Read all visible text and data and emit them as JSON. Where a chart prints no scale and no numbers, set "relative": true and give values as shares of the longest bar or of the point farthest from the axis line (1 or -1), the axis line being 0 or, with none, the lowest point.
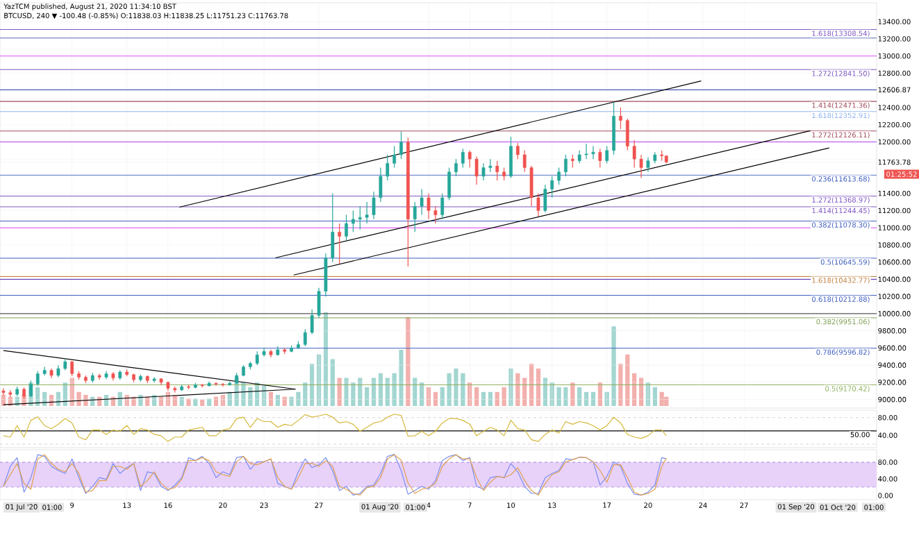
{
  "chart_data": [
    {
      "type": "candlestick",
      "title": "YazTCM published, August 21, 2020 11:34:10 BST",
      "subtitle": "BTCUSD, 240 ▼ -100.48 (-0.85%) O:11838.03 H:11838.25 L:11751.23 C:11763.78",
      "x": [
        "2020-07-04T00:00",
        "2020-07-04T12:00",
        "2020-07-05T00:00",
        "2020-07-05T12:00",
        "2020-07-06T00:00",
        "2020-07-06T12:00",
        "2020-07-07T00:00",
        "2020-07-07T12:00",
        "2020-07-08T00:00",
        "2020-07-08T12:00",
        "2020-07-09T00:00",
        "2020-07-09T12:00",
        "2020-07-10T00:00",
        "2020-07-10T12:00",
        "2020-07-11T00:00",
        "2020-07-11T12:00",
        "2020-07-12T00:00",
        "2020-07-12T12:00",
        "2020-07-13T00:00",
        "2020-07-13T12:00",
        "2020-07-14T00:00",
        "2020-07-14T12:00",
        "2020-07-15T00:00",
        "2020-07-15T12:00",
        "2020-07-16T00:00",
        "2020-07-16T12:00",
        "2020-07-17T00:00",
        "2020-07-17T12:00",
        "2020-07-18T00:00",
        "2020-07-18T12:00",
        "2020-07-19T00:00",
        "2020-07-19T12:00",
        "2020-07-20T00:00",
        "2020-07-20T12:00",
        "2020-07-21T00:00",
        "2020-07-21T12:00",
        "2020-07-22T00:00",
        "2020-07-22T12:00",
        "2020-07-23T00:00",
        "2020-07-23T12:00",
        "2020-07-24T00:00",
        "2020-07-24T12:00",
        "2020-07-25T00:00",
        "2020-07-25T12:00",
        "2020-07-26T00:00",
        "2020-07-26T12:00",
        "2020-07-27T00:00",
        "2020-07-27T12:00",
        "2020-07-28T00:00",
        "2020-07-28T12:00",
        "2020-07-29T00:00",
        "2020-07-29T12:00",
        "2020-07-30T00:00",
        "2020-07-30T12:00",
        "2020-07-31T00:00",
        "2020-07-31T12:00",
        "2020-08-01T00:00",
        "2020-08-01T12:00",
        "2020-08-02T00:00",
        "2020-08-02T12:00",
        "2020-08-03T00:00",
        "2020-08-03T12:00",
        "2020-08-04T00:00",
        "2020-08-04T12:00",
        "2020-08-05T00:00",
        "2020-08-05T12:00",
        "2020-08-06T00:00",
        "2020-08-06T12:00",
        "2020-08-07T00:00",
        "2020-08-07T12:00",
        "2020-08-08T00:00",
        "2020-08-08T12:00",
        "2020-08-09T00:00",
        "2020-08-09T12:00",
        "2020-08-10T00:00",
        "2020-08-10T12:00",
        "2020-08-11T00:00",
        "2020-08-11T12:00",
        "2020-08-12T00:00",
        "2020-08-12T12:00",
        "2020-08-13T00:00",
        "2020-08-13T12:00",
        "2020-08-14T00:00",
        "2020-08-14T12:00",
        "2020-08-15T00:00",
        "2020-08-15T12:00",
        "2020-08-16T00:00",
        "2020-08-16T12:00",
        "2020-08-17T00:00",
        "2020-08-17T12:00",
        "2020-08-18T00:00",
        "2020-08-18T12:00",
        "2020-08-19T00:00",
        "2020-08-19T12:00",
        "2020-08-20T00:00",
        "2020-08-20T12:00",
        "2020-08-21T00:00",
        "2020-08-21T08:00"
      ],
      "ohlc": [
        [
          9100,
          9130,
          9050,
          9080
        ],
        [
          9080,
          9110,
          9030,
          9060
        ],
        [
          9060,
          9150,
          9040,
          9120
        ],
        [
          9120,
          9140,
          9010,
          9040
        ],
        [
          9040,
          9220,
          9030,
          9180
        ],
        [
          9180,
          9330,
          9160,
          9300
        ],
        [
          9300,
          9380,
          9280,
          9340
        ],
        [
          9340,
          9360,
          9250,
          9280
        ],
        [
          9280,
          9400,
          9260,
          9360
        ],
        [
          9360,
          9470,
          9340,
          9440
        ],
        [
          9440,
          9450,
          9270,
          9300
        ],
        [
          9300,
          9330,
          9230,
          9260
        ],
        [
          9260,
          9280,
          9190,
          9220
        ],
        [
          9220,
          9310,
          9200,
          9280
        ],
        [
          9280,
          9300,
          9230,
          9260
        ],
        [
          9260,
          9330,
          9240,
          9300
        ],
        [
          9300,
          9320,
          9220,
          9250
        ],
        [
          9250,
          9340,
          9230,
          9320
        ],
        [
          9320,
          9350,
          9270,
          9290
        ],
        [
          9290,
          9300,
          9200,
          9230
        ],
        [
          9230,
          9290,
          9210,
          9270
        ],
        [
          9270,
          9280,
          9190,
          9220
        ],
        [
          9220,
          9260,
          9200,
          9240
        ],
        [
          9240,
          9250,
          9170,
          9200
        ],
        [
          9200,
          9210,
          9100,
          9130
        ],
        [
          9130,
          9150,
          9080,
          9110
        ],
        [
          9110,
          9170,
          9100,
          9150
        ],
        [
          9150,
          9170,
          9120,
          9140
        ],
        [
          9140,
          9190,
          9130,
          9170
        ],
        [
          9170,
          9180,
          9140,
          9160
        ],
        [
          9160,
          9210,
          9150,
          9190
        ],
        [
          9190,
          9200,
          9160,
          9180
        ],
        [
          9180,
          9190,
          9150,
          9170
        ],
        [
          9170,
          9210,
          9160,
          9190
        ],
        [
          9190,
          9310,
          9180,
          9280
        ],
        [
          9280,
          9400,
          9270,
          9380
        ],
        [
          9380,
          9440,
          9350,
          9420
        ],
        [
          9420,
          9560,
          9400,
          9520
        ],
        [
          9520,
          9600,
          9500,
          9560
        ],
        [
          9560,
          9580,
          9490,
          9520
        ],
        [
          9520,
          9620,
          9510,
          9580
        ],
        [
          9580,
          9600,
          9530,
          9560
        ],
        [
          9560,
          9630,
          9550,
          9600
        ],
        [
          9600,
          9680,
          9590,
          9640
        ],
        [
          9640,
          9820,
          9620,
          9780
        ],
        [
          9780,
          10050,
          9760,
          9980
        ],
        [
          9980,
          10300,
          9950,
          10260
        ],
        [
          10260,
          10700,
          10200,
          10650
        ],
        [
          10650,
          11400,
          10600,
          10950
        ],
        [
          10950,
          11050,
          10580,
          10900
        ],
        [
          10900,
          11150,
          10850,
          11050
        ],
        [
          11050,
          11200,
          10950,
          11100
        ],
        [
          11100,
          11250,
          10980,
          11120
        ],
        [
          11120,
          11300,
          11050,
          11150
        ],
        [
          11150,
          11420,
          11100,
          11350
        ],
        [
          11350,
          11700,
          11300,
          11600
        ],
        [
          11600,
          11850,
          11550,
          11750
        ],
        [
          11750,
          11950,
          11700,
          11850
        ],
        [
          11850,
          12120,
          11800,
          12000
        ],
        [
          12000,
          12050,
          10550,
          11100
        ],
        [
          11100,
          11300,
          10950,
          11250
        ],
        [
          11250,
          11450,
          11150,
          11350
        ],
        [
          11350,
          11400,
          11100,
          11200
        ],
        [
          11200,
          11250,
          11050,
          11150
        ],
        [
          11150,
          11400,
          11100,
          11350
        ],
        [
          11350,
          11700,
          11320,
          11650
        ],
        [
          11650,
          11800,
          11600,
          11750
        ],
        [
          11750,
          11920,
          11700,
          11880
        ],
        [
          11880,
          11900,
          11700,
          11800
        ],
        [
          11800,
          11830,
          11500,
          11600
        ],
        [
          11600,
          11750,
          11550,
          11700
        ],
        [
          11700,
          11800,
          11650,
          11720
        ],
        [
          11720,
          11780,
          11550,
          11650
        ],
        [
          11650,
          11700,
          11550,
          11600
        ],
        [
          11600,
          12060,
          11580,
          11950
        ],
        [
          11950,
          11990,
          11800,
          11850
        ],
        [
          11850,
          11900,
          11650,
          11700
        ],
        [
          11700,
          11720,
          11250,
          11350
        ],
        [
          11350,
          11400,
          11130,
          11200
        ],
        [
          11200,
          11500,
          11180,
          11450
        ],
        [
          11450,
          11600,
          11350,
          11550
        ],
        [
          11550,
          11700,
          11500,
          11650
        ],
        [
          11650,
          11850,
          11600,
          11800
        ],
        [
          11800,
          11850,
          11700,
          11780
        ],
        [
          11780,
          11900,
          11750,
          11850
        ],
        [
          11850,
          11980,
          11800,
          11860
        ],
        [
          11860,
          11950,
          11800,
          11880
        ],
        [
          11880,
          11920,
          11700,
          11780
        ],
        [
          11780,
          11950,
          11750,
          11900
        ],
        [
          11900,
          12465,
          11850,
          12300
        ],
        [
          12300,
          12400,
          12150,
          12250
        ],
        [
          12250,
          12270,
          11900,
          11950
        ],
        [
          11950,
          12020,
          11700,
          11800
        ],
        [
          11800,
          11850,
          11580,
          11700
        ],
        [
          11700,
          11820,
          11650,
          11780
        ],
        [
          11780,
          11880,
          11750,
          11850
        ],
        [
          11850,
          11900,
          11780,
          11838.03
        ],
        [
          11838.03,
          11838.25,
          11751.23,
          11763.78
        ]
      ],
      "series": [
        {
          "type": "line",
          "color": "#000000",
          "x": [
            "2020-07-16T20:00",
            "2020-08-23T21:00"
          ],
          "values": [
            11240,
            12710
          ]
        },
        {
          "type": "line",
          "color": "#000000",
          "x": [
            "2020-07-23T20:00",
            "2020-08-31T20:00"
          ],
          "values": [
            10650,
            12130
          ]
        },
        {
          "type": "line",
          "color": "#000000",
          "x": [
            "2020-07-25T04:00",
            "2020-09-02T05:00"
          ],
          "values": [
            10450,
            11930
          ]
        },
        {
          "type": "line",
          "color": "#000000",
          "x": [
            "2020-07-04T00:00",
            "2020-07-25T07:00"
          ],
          "values": [
            9570,
            9120
          ]
        },
        {
          "type": "line",
          "color": "#000000",
          "x": [
            "2020-07-04T00:00",
            "2020-07-25T07:00"
          ],
          "values": [
            8940,
            9120
          ]
        }
      ],
      "xlim": [
        "2020-07-03T18:00",
        "2020-09-05T16:00"
      ],
      "xticks": [
        {
          "value": "2020-07-09",
          "label": null
        },
        {
          "value": "2020-07-13",
          "label": null
        },
        {
          "value": "2020-07-16",
          "label": null
        },
        {
          "value": "2020-07-20",
          "label": null
        },
        {
          "value": "2020-07-23",
          "label": null
        },
        {
          "value": "2020-07-27",
          "label": null
        },
        {
          "value": "2020-08-04",
          "label": null
        },
        {
          "value": "2020-08-07",
          "label": null
        },
        {
          "value": "2020-08-10",
          "label": null
        },
        {
          "value": "2020-08-13",
          "label": null
        },
        {
          "value": "2020-08-17",
          "label": null
        },
        {
          "value": "2020-08-20",
          "label": null
        },
        {
          "value": "2020-08-24",
          "label": null
        },
        {
          "value": "2020-08-27",
          "label": null
        }
      ],
      "ylim": [
        8900,
        13620
      ],
      "yticks": [
        {
          "value": 9000,
          "label": "9000.00"
        },
        {
          "value": 9200,
          "label": "9200.00"
        },
        {
          "value": 9400,
          "label": "9400.00"
        },
        {
          "value": 9600,
          "label": "9600.00"
        },
        {
          "value": 9800,
          "label": "9800.00"
        },
        {
          "value": 10000,
          "label": "10000.00"
        },
        {
          "value": 10200,
          "label": "10200.00"
        },
        {
          "value": 10400,
          "label": "10400.00"
        },
        {
          "value": 10600,
          "label": "10600.00"
        },
        {
          "value": 10800,
          "label": "10800.00"
        },
        {
          "value": 11000,
          "label": "11000.00"
        },
        {
          "value": 11200,
          "label": "11200.00"
        },
        {
          "value": 11400,
          "label": "11400.00"
        },
        {
          "value": 11600,
          "label": null
        },
        {
          "value": 11763.78,
          "label": "11763.78"
        },
        {
          "value": 11800,
          "label": null
        },
        {
          "value": 12000,
          "label": "12000.00"
        },
        {
          "value": 12200,
          "label": "12200.00"
        },
        {
          "value": 12400,
          "label": "12400.00"
        },
        {
          "value": 12600,
          "label": null
        },
        {
          "value": 12606.87,
          "label": "12606.87"
        },
        {
          "value": 12800,
          "label": "12800.00"
        },
        {
          "value": 13000,
          "label": "13000.00"
        },
        {
          "value": 13200,
          "label": "13200.00"
        },
        {
          "value": 13400,
          "label": "13400.00"
        }
      ],
      "tick_labels": "y",
      "grid": true,
      "ref_lines": [
        {
          "axis": "y",
          "value": 13308.54,
          "label": "1.618(13308.54)",
          "color": "#7e57c2"
        },
        {
          "axis": "y",
          "value": 13210,
          "color": "#5c6bc0"
        },
        {
          "axis": "y",
          "value": 13000,
          "color": "#e040fb"
        },
        {
          "axis": "y",
          "value": 12841.5,
          "label": "1.272(12841.50)",
          "color": "#7e57c2"
        },
        {
          "axis": "y",
          "value": 12606.87,
          "color": "#3f51b5"
        },
        {
          "axis": "y",
          "value": 12471.36,
          "label": "1.414(12471.36)",
          "color": "#a14a5a"
        },
        {
          "axis": "y",
          "value": 12352.91,
          "label": "1.618(12352.91)",
          "color": "#90b4f0"
        },
        {
          "axis": "y",
          "value": 12126.11,
          "label": "1.272(12126.11)",
          "color": "#a14a5a"
        },
        {
          "axis": "y",
          "value": 12000,
          "color": "#b040f0"
        },
        {
          "axis": "y",
          "value": 11613.68,
          "label": "0.236(11613.68)",
          "color": "#3f5fc0"
        },
        {
          "axis": "y",
          "value": 11368.97,
          "label": "1.272(11368.97)",
          "color": "#7e57c2"
        },
        {
          "axis": "y",
          "value": 11244.45,
          "label": "1.414(11244.45)",
          "color": "#7e57c2"
        },
        {
          "axis": "y",
          "value": 11078.3,
          "label": "0.382(11078.30)",
          "color": "#3f5fc0"
        },
        {
          "axis": "y",
          "value": 11000,
          "color": "#e040fb"
        },
        {
          "axis": "y",
          "value": 10645.59,
          "label": "0.5(10645.59)",
          "color": "#3f5fc0"
        },
        {
          "axis": "y",
          "value": 10432.77,
          "label": "1.618(10432.77)",
          "color": "#c08040"
        },
        {
          "axis": "y",
          "value": 10400,
          "color": "#5e35b1"
        },
        {
          "axis": "y",
          "value": 10212.88,
          "label": "0.618(10212.88)",
          "color": "#3f5fc0"
        },
        {
          "axis": "y",
          "value": 10000,
          "color": "#555555"
        },
        {
          "axis": "y",
          "value": 9951.06,
          "label": "0.382(9951.06)",
          "color": "#7fa055"
        },
        {
          "axis": "y",
          "value": 9596.82,
          "label": "0.786(9596.82)",
          "color": "#3f5fc0"
        },
        {
          "axis": "y",
          "value": 9170.42,
          "label": "0.5(9170.42)",
          "color": "#8fb060"
        }
      ],
      "annotations": [
        "01:25:52"
      ]
    },
    {
      "type": "bar",
      "relative": true,
      "x": [
        "2020-07-04T00:00",
        "2020-07-04T12:00",
        "2020-07-05T00:00",
        "2020-07-05T12:00",
        "2020-07-06T00:00",
        "2020-07-06T12:00",
        "2020-07-07T00:00",
        "2020-07-07T12:00",
        "2020-07-08T00:00",
        "2020-07-08T12:00",
        "2020-07-09T00:00",
        "2020-07-09T12:00",
        "2020-07-10T00:00",
        "2020-07-10T12:00",
        "2020-07-11T00:00",
        "2020-07-11T12:00",
        "2020-07-12T00:00",
        "2020-07-12T12:00",
        "2020-07-13T00:00",
        "2020-07-13T12:00",
        "2020-07-14T00:00",
        "2020-07-14T12:00",
        "2020-07-15T00:00",
        "2020-07-15T12:00",
        "2020-07-16T00:00",
        "2020-07-16T12:00",
        "2020-07-17T00:00",
        "2020-07-17T12:00",
        "2020-07-18T00:00",
        "2020-07-18T12:00",
        "2020-07-19T00:00",
        "2020-07-19T12:00",
        "2020-07-20T00:00",
        "2020-07-20T12:00",
        "2020-07-21T00:00",
        "2020-07-21T12:00",
        "2020-07-22T00:00",
        "2020-07-22T12:00",
        "2020-07-23T00:00",
        "2020-07-23T12:00",
        "2020-07-24T00:00",
        "2020-07-24T12:00",
        "2020-07-25T00:00",
        "2020-07-25T12:00",
        "2020-07-26T00:00",
        "2020-07-26T12:00",
        "2020-07-27T00:00",
        "2020-07-27T12:00",
        "2020-07-28T00:00",
        "2020-07-28T12:00",
        "2020-07-29T00:00",
        "2020-07-29T12:00",
        "2020-07-30T00:00",
        "2020-07-30T12:00",
        "2020-07-31T00:00",
        "2020-07-31T12:00",
        "2020-08-01T00:00",
        "2020-08-01T12:00",
        "2020-08-02T00:00",
        "2020-08-02T12:00",
        "2020-08-03T00:00",
        "2020-08-03T12:00",
        "2020-08-04T00:00",
        "2020-08-04T12:00",
        "2020-08-05T00:00",
        "2020-08-05T12:00",
        "2020-08-06T00:00",
        "2020-08-06T12:00",
        "2020-08-07T00:00",
        "2020-08-07T12:00",
        "2020-08-08T00:00",
        "2020-08-08T12:00",
        "2020-08-09T00:00",
        "2020-08-09T12:00",
        "2020-08-10T00:00",
        "2020-08-10T12:00",
        "2020-08-11T00:00",
        "2020-08-11T12:00",
        "2020-08-12T00:00",
        "2020-08-12T12:00",
        "2020-08-13T00:00",
        "2020-08-13T12:00",
        "2020-08-14T00:00",
        "2020-08-14T12:00",
        "2020-08-15T00:00",
        "2020-08-15T12:00",
        "2020-08-16T00:00",
        "2020-08-16T12:00",
        "2020-08-17T00:00",
        "2020-08-17T12:00",
        "2020-08-18T00:00",
        "2020-08-18T12:00",
        "2020-08-19T00:00",
        "2020-08-19T12:00",
        "2020-08-20T00:00",
        "2020-08-20T12:00",
        "2020-08-21T00:00",
        "2020-08-21T08:00"
      ],
      "values": [
        0.12,
        0.1,
        0.1,
        0.12,
        0.25,
        0.2,
        0.15,
        0.12,
        0.15,
        0.25,
        0.3,
        0.15,
        0.12,
        0.1,
        0.1,
        0.12,
        0.1,
        0.15,
        0.12,
        0.1,
        0.12,
        0.1,
        0.12,
        0.1,
        0.15,
        0.12,
        0.1,
        0.08,
        0.08,
        0.07,
        0.08,
        0.1,
        0.12,
        0.15,
        0.3,
        0.25,
        0.2,
        0.25,
        0.22,
        0.15,
        0.12,
        0.1,
        0.1,
        0.15,
        0.25,
        0.45,
        0.55,
        1.0,
        0.5,
        0.3,
        0.3,
        0.25,
        0.3,
        0.2,
        0.3,
        0.35,
        0.3,
        0.35,
        0.6,
        0.95,
        0.3,
        0.25,
        0.2,
        0.15,
        0.2,
        0.35,
        0.4,
        0.35,
        0.25,
        0.2,
        0.15,
        0.15,
        0.15,
        0.2,
        0.4,
        0.35,
        0.3,
        0.45,
        0.4,
        0.3,
        0.25,
        0.2,
        0.2,
        0.25,
        0.2,
        0.15,
        0.15,
        0.25,
        0.15,
        0.85,
        0.45,
        0.55,
        0.35,
        0.3,
        0.25,
        0.2,
        0.15,
        0.1
      ],
      "colors": [
        "#f2b0ad",
        "#f2b0ad",
        "#a3d6d1",
        "#f2b0ad",
        "#a3d6d1",
        "#a3d6d1",
        "#a3d6d1",
        "#f2b0ad",
        "#a3d6d1",
        "#a3d6d1",
        "#f2b0ad",
        "#f2b0ad",
        "#f2b0ad",
        "#a3d6d1",
        "#f2b0ad",
        "#a3d6d1",
        "#f2b0ad",
        "#a3d6d1",
        "#f2b0ad",
        "#f2b0ad",
        "#a3d6d1",
        "#f2b0ad",
        "#a3d6d1",
        "#f2b0ad",
        "#f2b0ad",
        "#f2b0ad",
        "#a3d6d1",
        "#f2b0ad",
        "#a3d6d1",
        "#f2b0ad",
        "#a3d6d1",
        "#f2b0ad",
        "#f2b0ad",
        "#a3d6d1",
        "#a3d6d1",
        "#a3d6d1",
        "#a3d6d1",
        "#a3d6d1",
        "#a3d6d1",
        "#f2b0ad",
        "#a3d6d1",
        "#f2b0ad",
        "#a3d6d1",
        "#a3d6d1",
        "#a3d6d1",
        "#a3d6d1",
        "#a3d6d1",
        "#a3d6d1",
        "#a3d6d1",
        "#f2b0ad",
        "#a3d6d1",
        "#a3d6d1",
        "#a3d6d1",
        "#a3d6d1",
        "#a3d6d1",
        "#a3d6d1",
        "#a3d6d1",
        "#a3d6d1",
        "#a3d6d1",
        "#f2b0ad",
        "#a3d6d1",
        "#a3d6d1",
        "#f2b0ad",
        "#f2b0ad",
        "#a3d6d1",
        "#a3d6d1",
        "#a3d6d1",
        "#a3d6d1",
        "#f2b0ad",
        "#f2b0ad",
        "#a3d6d1",
        "#a3d6d1",
        "#f2b0ad",
        "#f2b0ad",
        "#a3d6d1",
        "#f2b0ad",
        "#f2b0ad",
        "#f2b0ad",
        "#f2b0ad",
        "#a3d6d1",
        "#a3d6d1",
        "#a3d6d1",
        "#a3d6d1",
        "#f2b0ad",
        "#a3d6d1",
        "#a3d6d1",
        "#a3d6d1",
        "#f2b0ad",
        "#a3d6d1",
        "#a3d6d1",
        "#f2b0ad",
        "#f2b0ad",
        "#f2b0ad",
        "#f2b0ad",
        "#a3d6d1",
        "#a3d6d1",
        "#f2b0ad",
        "#f2b0ad"
      ],
      "xlim": [
        "2020-07-03T18:00",
        "2020-09-05T16:00"
      ]
    },
    {
      "type": "line",
      "x": [
        "2020-07-04T00:00",
        "2020-07-04T12:00",
        "2020-07-05T00:00",
        "2020-07-05T12:00",
        "2020-07-06T00:00",
        "2020-07-06T12:00",
        "2020-07-07T00:00",
        "2020-07-07T12:00",
        "2020-07-08T00:00",
        "2020-07-08T12:00",
        "2020-07-09T00:00",
        "2020-07-09T12:00",
        "2020-07-10T00:00",
        "2020-07-10T12:00",
        "2020-07-11T00:00",
        "2020-07-11T12:00",
        "2020-07-12T00:00",
        "2020-07-12T12:00",
        "2020-07-13T00:00",
        "2020-07-13T12:00",
        "2020-07-14T00:00",
        "2020-07-14T12:00",
        "2020-07-15T00:00",
        "2020-07-15T12:00",
        "2020-07-16T00:00",
        "2020-07-16T12:00",
        "2020-07-17T00:00",
        "2020-07-17T12:00",
        "2020-07-18T00:00",
        "2020-07-18T12:00",
        "2020-07-19T00:00",
        "2020-07-19T12:00",
        "2020-07-20T00:00",
        "2020-07-20T12:00",
        "2020-07-21T00:00",
        "2020-07-21T12:00",
        "2020-07-22T00:00",
        "2020-07-22T12:00",
        "2020-07-23T00:00",
        "2020-07-23T12:00",
        "2020-07-24T00:00",
        "2020-07-24T12:00",
        "2020-07-25T00:00",
        "2020-07-25T12:00",
        "2020-07-26T00:00",
        "2020-07-26T12:00",
        "2020-07-27T00:00",
        "2020-07-27T12:00",
        "2020-07-28T00:00",
        "2020-07-28T12:00",
        "2020-07-29T00:00",
        "2020-07-29T12:00",
        "2020-07-30T00:00",
        "2020-07-30T12:00",
        "2020-07-31T00:00",
        "2020-07-31T12:00",
        "2020-08-01T00:00",
        "2020-08-01T12:00",
        "2020-08-02T00:00",
        "2020-08-02T12:00",
        "2020-08-03T00:00",
        "2020-08-03T12:00",
        "2020-08-04T00:00",
        "2020-08-04T12:00",
        "2020-08-05T00:00",
        "2020-08-05T12:00",
        "2020-08-06T00:00",
        "2020-08-06T12:00",
        "2020-08-07T00:00",
        "2020-08-07T12:00",
        "2020-08-08T00:00",
        "2020-08-08T12:00",
        "2020-08-09T00:00",
        "2020-08-09T12:00",
        "2020-08-10T00:00",
        "2020-08-10T12:00",
        "2020-08-11T00:00",
        "2020-08-11T12:00",
        "2020-08-12T00:00",
        "2020-08-12T12:00",
        "2020-08-13T00:00",
        "2020-08-13T12:00",
        "2020-08-14T00:00",
        "2020-08-14T12:00",
        "2020-08-15T00:00",
        "2020-08-15T12:00",
        "2020-08-16T00:00",
        "2020-08-16T12:00",
        "2020-08-17T00:00",
        "2020-08-17T12:00",
        "2020-08-18T00:00",
        "2020-08-18T12:00",
        "2020-08-19T00:00",
        "2020-08-19T12:00",
        "2020-08-20T00:00",
        "2020-08-20T12:00",
        "2020-08-21T00:00",
        "2020-08-21T08:00"
      ],
      "series": [
        {
          "color": "#d4b83a",
          "values": [
            39,
            36,
            62,
            36,
            74,
            82,
            62,
            55,
            65,
            78,
            68,
            36,
            30,
            52,
            52,
            42,
            52,
            49,
            62,
            42,
            55,
            52,
            42,
            39,
            26,
            36,
            36,
            52,
            55,
            58,
            39,
            39,
            52,
            55,
            78,
            81,
            58,
            78,
            71,
            71,
            58,
            65,
            62,
            74,
            87,
            81,
            84,
            88,
            81,
            68,
            71,
            65,
            49,
            58,
            68,
            71,
            81,
            88,
            85,
            38,
            39,
            49,
            39,
            49,
            68,
            78,
            78,
            74,
            65,
            39,
            49,
            58,
            52,
            39,
            74,
            55,
            52,
            30,
            26,
            42,
            52,
            45,
            71,
            65,
            71,
            68,
            62,
            52,
            62,
            81,
            68,
            42,
            36,
            33,
            39,
            52,
            52,
            39
          ]
        }
      ],
      "xlim": [
        "2020-07-03T18:00",
        "2020-09-05T16:00"
      ],
      "xticks": [
        {
          "value": "2020-07-09",
          "label": null
        },
        {
          "value": "2020-07-13",
          "label": null
        },
        {
          "value": "2020-07-16",
          "label": null
        },
        {
          "value": "2020-07-20",
          "label": null
        },
        {
          "value": "2020-07-23",
          "label": null
        },
        {
          "value": "2020-07-27",
          "label": null
        },
        {
          "value": "2020-08-04",
          "label": null
        },
        {
          "value": "2020-08-07",
          "label": null
        },
        {
          "value": "2020-08-10",
          "label": null
        },
        {
          "value": "2020-08-13",
          "label": null
        },
        {
          "value": "2020-08-17",
          "label": null
        },
        {
          "value": "2020-08-20",
          "label": null
        },
        {
          "value": "2020-08-24",
          "label": null
        },
        {
          "value": "2020-08-27",
          "label": null
        }
      ],
      "ylim": [
        12,
        97
      ],
      "yticks": [
        {
          "value": 40,
          "label": "40.00"
        },
        {
          "value": 80,
          "label": "80.00"
        }
      ],
      "tick_labels": "y",
      "grid": "x",
      "ref_lines": [
        {
          "axis": "y",
          "value": 80,
          "color": "#d9d0dc",
          "line_style": "dashed"
        },
        {
          "axis": "y",
          "value": 20,
          "color": "#d9d0dc",
          "line_style": "dashed"
        },
        {
          "axis": "y",
          "value": 50,
          "label": "50.00",
          "color": "#000000"
        }
      ]
    },
    {
      "type": "line",
      "x": [
        "2020-07-04T00:00",
        "2020-07-04T12:00",
        "2020-07-05T00:00",
        "2020-07-05T12:00",
        "2020-07-06T00:00",
        "2020-07-06T12:00",
        "2020-07-07T00:00",
        "2020-07-07T12:00",
        "2020-07-08T00:00",
        "2020-07-08T12:00",
        "2020-07-09T00:00",
        "2020-07-09T12:00",
        "2020-07-10T00:00",
        "2020-07-10T12:00",
        "2020-07-11T00:00",
        "2020-07-11T12:00",
        "2020-07-12T00:00",
        "2020-07-12T12:00",
        "2020-07-13T00:00",
        "2020-07-13T12:00",
        "2020-07-14T00:00",
        "2020-07-14T12:00",
        "2020-07-15T00:00",
        "2020-07-15T12:00",
        "2020-07-16T00:00",
        "2020-07-16T12:00",
        "2020-07-17T00:00",
        "2020-07-17T12:00",
        "2020-07-18T00:00",
        "2020-07-18T12:00",
        "2020-07-19T00:00",
        "2020-07-19T12:00",
        "2020-07-20T00:00",
        "2020-07-20T12:00",
        "2020-07-21T00:00",
        "2020-07-21T12:00",
        "2020-07-22T00:00",
        "2020-07-22T12:00",
        "2020-07-23T00:00",
        "2020-07-23T12:00",
        "2020-07-24T00:00",
        "2020-07-24T12:00",
        "2020-07-25T00:00",
        "2020-07-25T12:00",
        "2020-07-26T00:00",
        "2020-07-26T12:00",
        "2020-07-27T00:00",
        "2020-07-27T12:00",
        "2020-07-28T00:00",
        "2020-07-28T12:00",
        "2020-07-29T00:00",
        "2020-07-29T12:00",
        "2020-07-30T00:00",
        "2020-07-30T12:00",
        "2020-07-31T00:00",
        "2020-07-31T12:00",
        "2020-08-01T00:00",
        "2020-08-01T12:00",
        "2020-08-02T00:00",
        "2020-08-02T12:00",
        "2020-08-03T00:00",
        "2020-08-03T12:00",
        "2020-08-04T00:00",
        "2020-08-04T12:00",
        "2020-08-05T00:00",
        "2020-08-05T12:00",
        "2020-08-06T00:00",
        "2020-08-06T12:00",
        "2020-08-07T00:00",
        "2020-08-07T12:00",
        "2020-08-08T00:00",
        "2020-08-08T12:00",
        "2020-08-09T00:00",
        "2020-08-09T12:00",
        "2020-08-10T00:00",
        "2020-08-10T12:00",
        "2020-08-11T00:00",
        "2020-08-11T12:00",
        "2020-08-12T00:00",
        "2020-08-12T12:00",
        "2020-08-13T00:00",
        "2020-08-13T12:00",
        "2020-08-14T00:00",
        "2020-08-14T12:00",
        "2020-08-15T00:00",
        "2020-08-15T12:00",
        "2020-08-16T00:00",
        "2020-08-16T12:00",
        "2020-08-17T00:00",
        "2020-08-17T12:00",
        "2020-08-18T00:00",
        "2020-08-18T12:00",
        "2020-08-19T00:00",
        "2020-08-19T12:00",
        "2020-08-20T00:00",
        "2020-08-20T12:00",
        "2020-08-21T00:00",
        "2020-08-21T08:00"
      ],
      "series": [
        {
          "color": "#7b8ef0",
          "values": [
            22,
            70,
            91,
            8,
            43,
            98,
            94,
            70,
            60,
            53,
            88,
            43,
            5,
            22,
            43,
            39,
            77,
            53,
            67,
            77,
            12,
            57,
            53,
            22,
            12,
            25,
            43,
            91,
            84,
            94,
            77,
            43,
            57,
            50,
            91,
            94,
            63,
            81,
            81,
            88,
            29,
            22,
            15,
            57,
            88,
            67,
            74,
            91,
            60,
            12,
            22,
            1,
            5,
            22,
            25,
            53,
            94,
            99,
            60,
            3,
            12,
            22,
            15,
            36,
            84,
            94,
            98,
            84,
            91,
            22,
            15,
            43,
            46,
            43,
            77,
            57,
            22,
            5,
            5,
            43,
            53,
            60,
            88,
            86,
            92,
            91,
            81,
            25,
            46,
            81,
            70,
            29,
            3,
            1,
            8,
            25,
            91,
            88
          ]
        },
        {
          "color": "#e0a050",
          "values": [
            22,
            50,
            77,
            29,
            15,
            88,
            98,
            77,
            63,
            57,
            77,
            53,
            8,
            12,
            36,
            36,
            70,
            70,
            63,
            77,
            22,
            36,
            57,
            29,
            15,
            19,
            39,
            84,
            84,
            91,
            84,
            57,
            50,
            46,
            81,
            94,
            77,
            74,
            81,
            88,
            43,
            22,
            15,
            43,
            77,
            77,
            70,
            84,
            70,
            22,
            15,
            5,
            1,
            19,
            22,
            43,
            88,
            98,
            85,
            30,
            5,
            15,
            19,
            29,
            70,
            88,
            98,
            88,
            88,
            43,
            12,
            32,
            46,
            43,
            50,
            67,
            36,
            12,
            1,
            29,
            50,
            57,
            81,
            86,
            92,
            91,
            81,
            60,
            32,
            74,
            74,
            43,
            8,
            1,
            5,
            15,
            70,
            90
          ]
        }
      ],
      "xlim": [
        "2020-07-03T18:00",
        "2020-09-05T16:00"
      ],
      "xticks": [
        {
          "value": "2020-07-09",
          "label": "9"
        },
        {
          "value": "2020-07-13",
          "label": "13"
        },
        {
          "value": "2020-07-16",
          "label": "16"
        },
        {
          "value": "2020-07-20",
          "label": "20"
        },
        {
          "value": "2020-07-23",
          "label": "23"
        },
        {
          "value": "2020-07-27",
          "label": "27"
        },
        {
          "value": "2020-08-04",
          "label": "4"
        },
        {
          "value": "2020-08-07",
          "label": "7"
        },
        {
          "value": "2020-08-10",
          "label": "10"
        },
        {
          "value": "2020-08-13",
          "label": "13"
        },
        {
          "value": "2020-08-17",
          "label": "17"
        },
        {
          "value": "2020-08-20",
          "label": "20"
        },
        {
          "value": "2020-08-24",
          "label": "24"
        },
        {
          "value": "2020-08-27",
          "label": "27"
        }
      ],
      "ylim": [
        -10,
        110
      ],
      "yticks": [
        {
          "value": 0,
          "label": "0.00"
        },
        {
          "value": 40,
          "label": "40.00"
        },
        {
          "value": 80,
          "label": "80.00"
        }
      ],
      "grid": "x",
      "bands": [
        {
          "axis": "y",
          "from": 20,
          "to": 80,
          "color": "#e8d2fa"
        }
      ],
      "ref_lines": [
        {
          "axis": "y",
          "value": 80,
          "color": "#9575cd",
          "line_style": "dashed"
        },
        {
          "axis": "y",
          "value": 20,
          "color": "#9575cd",
          "line_style": "dashed"
        }
      ],
      "annotations": [
        "01 Jul '20",
        "01:00",
        "01 Aug '20",
        "01:00",
        "01 Sep '20",
        "01 Oct '20",
        "01:00"
      ]
    }
  ]
}
